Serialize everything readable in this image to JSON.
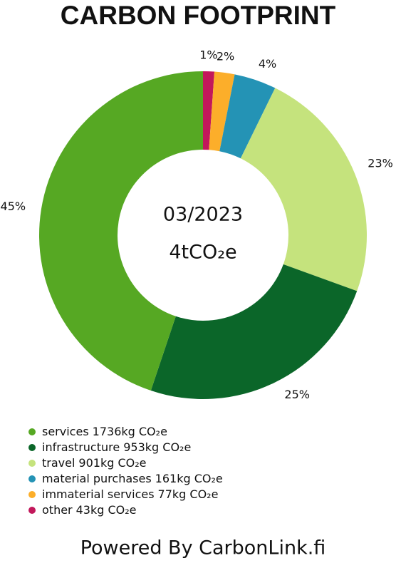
{
  "chart_data": {
    "type": "donut",
    "title": "CARBON FOOTPRINT",
    "center_texts": [
      "03/2023",
      "4tCO₂e"
    ],
    "series": [
      {
        "name": "services",
        "color": "#56a823"
      },
      {
        "name": "infrastructure",
        "color": "#0b6629"
      },
      {
        "name": "travel",
        "color": "#c5e37d"
      },
      {
        "name": "material purchases",
        "color": "#2493b5"
      },
      {
        "name": "immaterial services",
        "color": "#fcae2a"
      },
      {
        "name": "other",
        "color": "#c2185b"
      }
    ],
    "values": [
      1736,
      953,
      901,
      161,
      77,
      43
    ],
    "value_labels": [
      "1736kg CO₂e",
      "953kg CO₂e",
      "901kg CO₂e",
      "161kg CO₂e",
      "77kg CO₂e",
      "43kg CO₂e"
    ],
    "percentages": [
      45,
      25,
      23,
      4,
      2,
      1
    ],
    "percentage_labels": [
      "45%",
      "25%",
      "23%",
      "4%",
      "2%",
      "1%"
    ],
    "footer": "Powered By CarbonLink.fi"
  }
}
